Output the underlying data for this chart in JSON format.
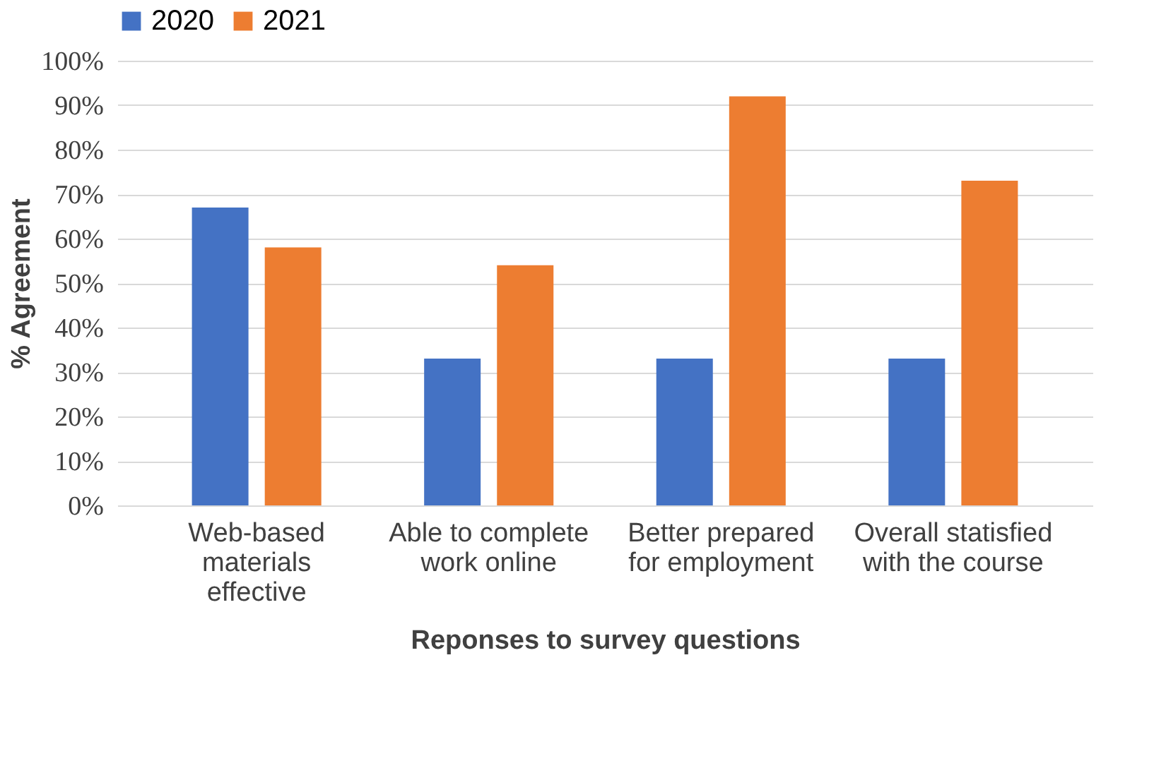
{
  "chart_data": {
    "type": "bar",
    "categories": [
      "Web-based materials effective",
      "Able to complete work online",
      "Better prepared for employment",
      "Overall statisfied with the course"
    ],
    "series": [
      {
        "name": "2020",
        "color": "#4472c4",
        "values": [
          67,
          33,
          33,
          33
        ]
      },
      {
        "name": "2021",
        "color": "#ed7d31",
        "values": [
          58,
          54,
          92,
          73
        ]
      }
    ],
    "xlabel": "Reponses to survey questions",
    "ylabel": "% Agreement",
    "ylim": [
      0,
      100
    ],
    "yticks": [
      {
        "value": 0,
        "label": "0%"
      },
      {
        "value": 10,
        "label": "10%"
      },
      {
        "value": 20,
        "label": "20%"
      },
      {
        "value": 30,
        "label": "30%"
      },
      {
        "value": 40,
        "label": "40%"
      },
      {
        "value": 50,
        "label": "50%"
      },
      {
        "value": 60,
        "label": "60%"
      },
      {
        "value": 70,
        "label": "70%"
      },
      {
        "value": 80,
        "label": "80%"
      },
      {
        "value": 90,
        "label": "90%"
      },
      {
        "value": 100,
        "label": "100%"
      }
    ],
    "grid": "y",
    "legend": "top"
  }
}
